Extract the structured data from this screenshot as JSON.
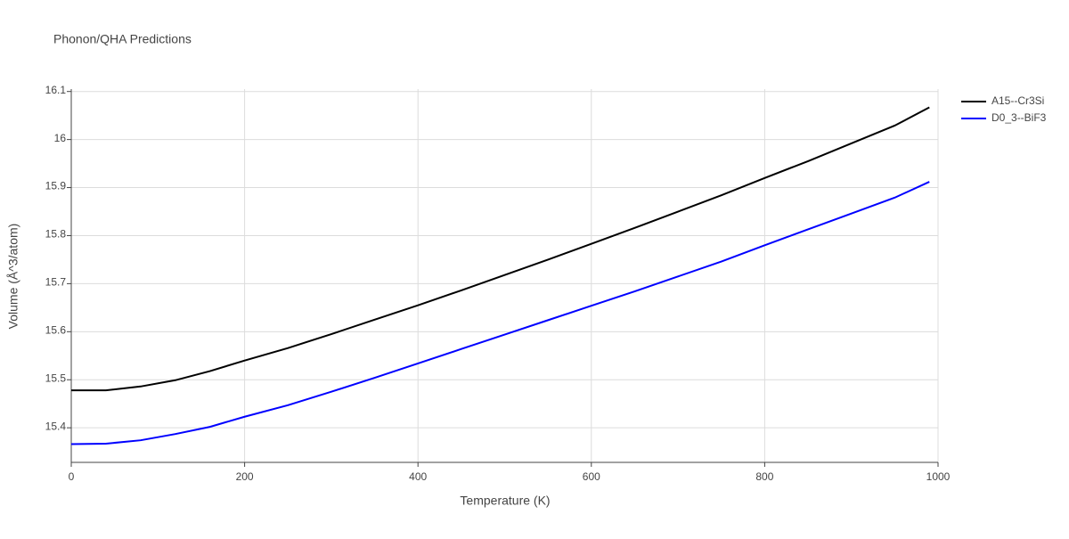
{
  "chart_data": {
    "type": "line",
    "title": "Phonon/QHA Predictions",
    "x_label": "Temperature (K)",
    "y_label": "Volume (Å^3/atom)",
    "x": [
      0,
      40,
      80,
      120,
      160,
      200,
      250,
      300,
      350,
      400,
      450,
      500,
      550,
      600,
      650,
      700,
      750,
      800,
      850,
      900,
      950,
      990
    ],
    "series": [
      {
        "name": "A15--Cr3Si",
        "color": "#000000",
        "values": [
          15.478,
          15.478,
          15.486,
          15.499,
          15.518,
          15.54,
          15.566,
          15.595,
          15.625,
          15.655,
          15.686,
          15.718,
          15.75,
          15.783,
          15.816,
          15.85,
          15.884,
          15.92,
          15.955,
          15.992,
          16.029,
          16.067
        ]
      },
      {
        "name": "D0_3--BiF3",
        "color": "#0000ff",
        "values": [
          15.366,
          15.367,
          15.374,
          15.387,
          15.402,
          15.423,
          15.447,
          15.475,
          15.504,
          15.534,
          15.564,
          15.594,
          15.624,
          15.654,
          15.684,
          15.715,
          15.746,
          15.78,
          15.813,
          15.846,
          15.879,
          15.912
        ]
      }
    ],
    "xlim": [
      0,
      1000
    ],
    "xticks": [
      0,
      200,
      400,
      600,
      800,
      1000
    ],
    "ylim": [
      15.328,
      16.105
    ],
    "yticks": [
      15.4,
      15.5,
      15.6,
      15.7,
      15.8,
      15.9,
      16,
      16.1
    ],
    "grid": true,
    "legend": "right"
  }
}
